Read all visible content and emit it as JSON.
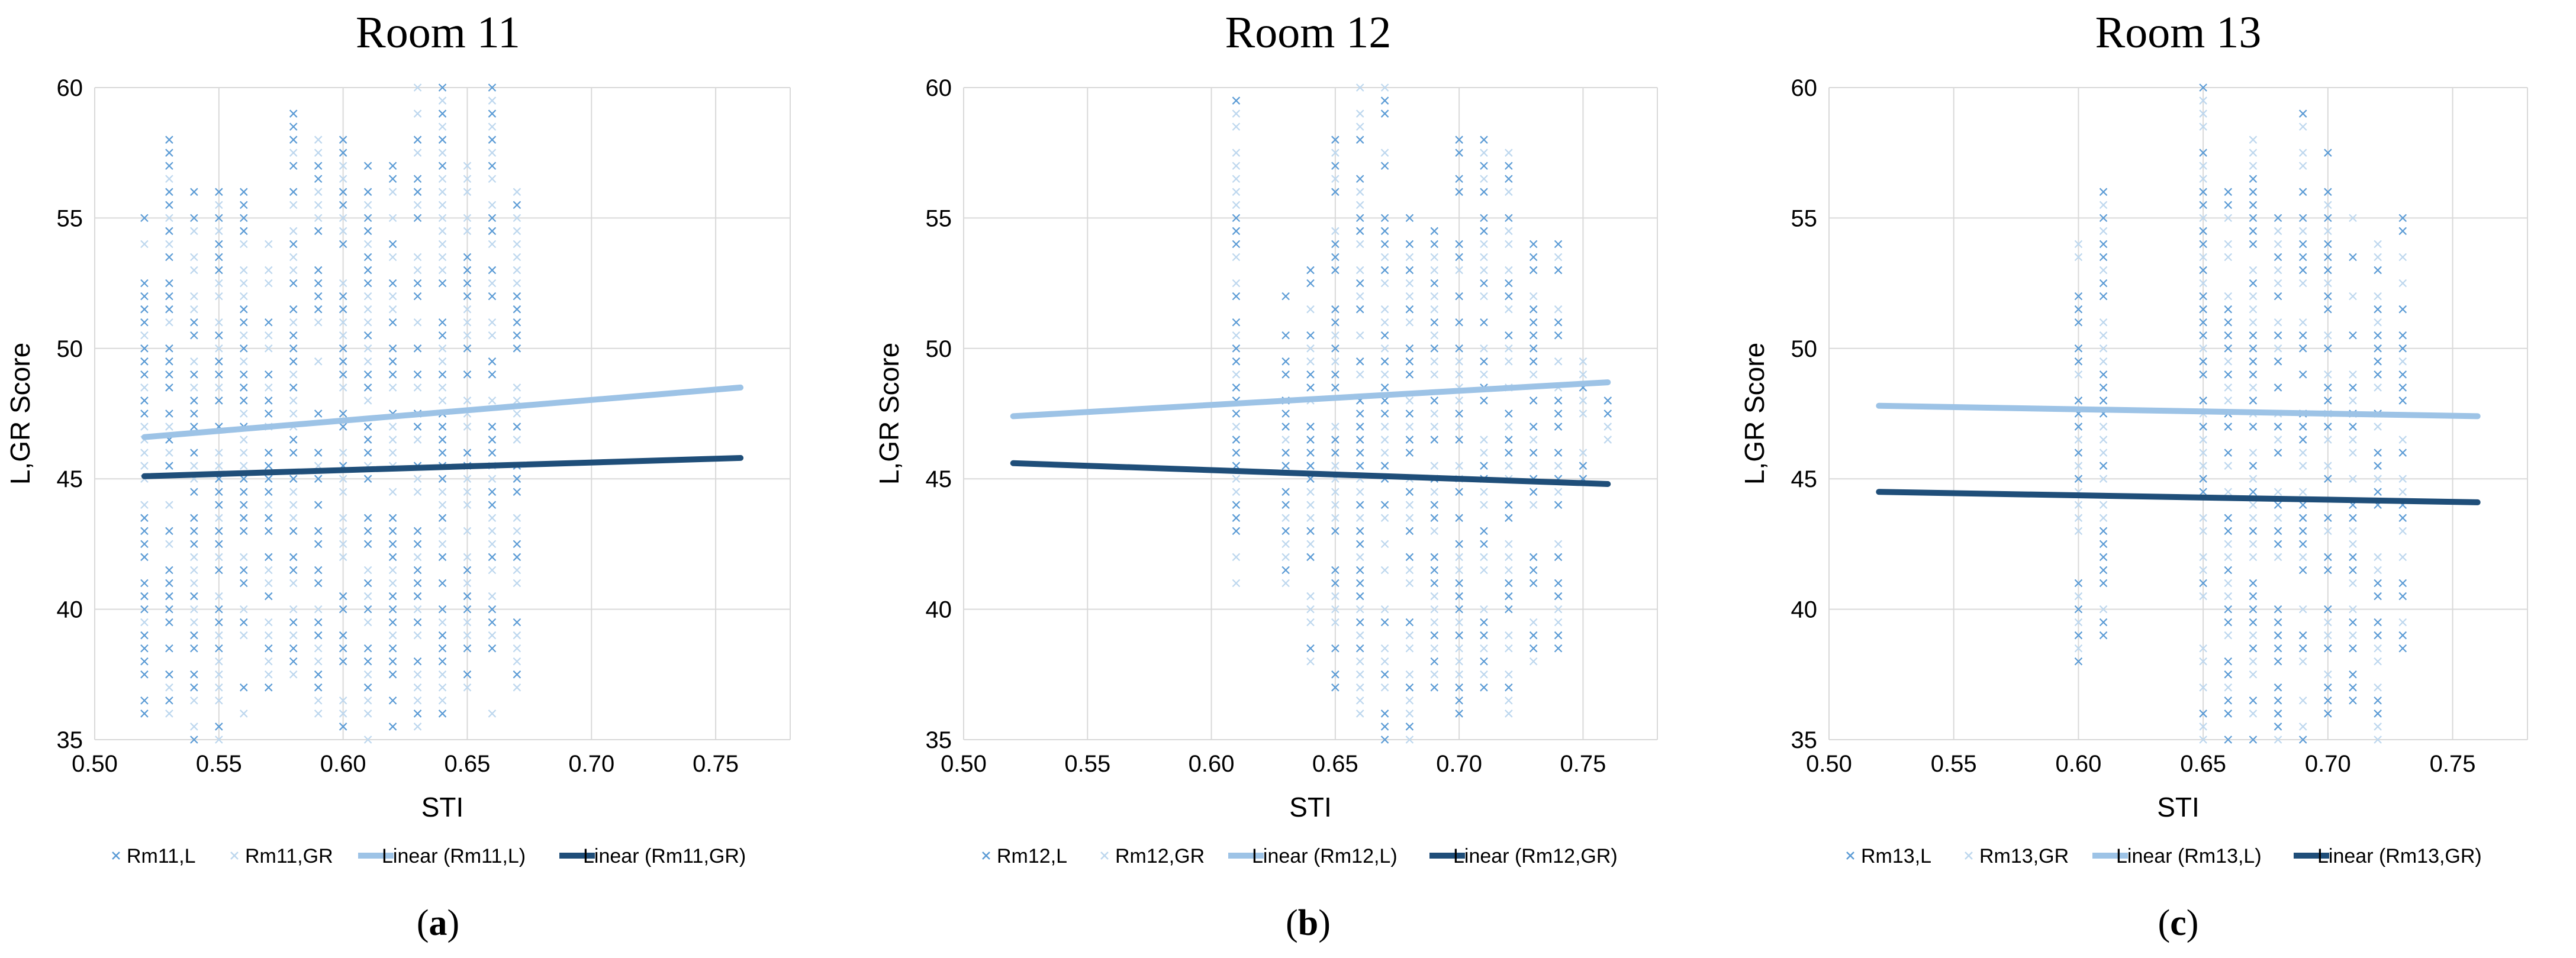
{
  "colors": {
    "L_points": "#5b9bd5",
    "GR_points": "#bdd7ee",
    "L_line": "#9dc3e6",
    "GR_line": "#1f4e79",
    "grid": "#d9d9d9"
  },
  "chart_data": [
    {
      "type": "scatter",
      "title": "Room 11",
      "caption_letter": "a",
      "xlabel": "STI",
      "ylabel": "L,GR Score",
      "xlim": [
        0.5,
        0.78
      ],
      "ylim": [
        35,
        60
      ],
      "xticks": [
        "0.50",
        "0.55",
        "0.60",
        "0.65",
        "0.70",
        "0.75"
      ],
      "yticks": [
        "35",
        "40",
        "45",
        "50",
        "55",
        "60"
      ],
      "legend": [
        "Rm11,L",
        "Rm11,GR",
        "Linear (Rm11,L)",
        "Linear (Rm11,GR)"
      ],
      "stiValues": [
        0.52,
        0.53,
        0.54,
        0.55,
        0.56,
        0.57,
        0.58,
        0.59,
        0.6,
        0.61,
        0.62,
        0.63,
        0.64,
        0.65,
        0.66,
        0.67
      ],
      "ranges": [
        [
          36,
          55
        ],
        [
          36,
          58
        ],
        [
          35,
          56
        ],
        [
          35,
          56
        ],
        [
          36,
          56
        ],
        [
          37,
          54
        ],
        [
          37,
          59
        ],
        [
          36,
          58
        ],
        [
          35,
          58
        ],
        [
          35,
          57
        ],
        [
          35,
          57
        ],
        [
          35,
          60
        ],
        [
          36,
          60
        ],
        [
          37,
          57
        ],
        [
          36,
          60
        ],
        [
          37,
          56
        ]
      ],
      "series": [
        {
          "name": "Linear (Rm11,L)",
          "x": [
            0.52,
            0.76
          ],
          "y": [
            46.6,
            48.5
          ]
        },
        {
          "name": "Linear (Rm11,GR)",
          "x": [
            0.52,
            0.76
          ],
          "y": [
            45.1,
            45.8
          ]
        }
      ]
    },
    {
      "type": "scatter",
      "title": "Room 12",
      "caption_letter": "b",
      "xlabel": "STI",
      "ylabel": "L,GR Score",
      "xlim": [
        0.5,
        0.78
      ],
      "ylim": [
        35,
        60
      ],
      "xticks": [
        "0.50",
        "0.55",
        "0.60",
        "0.65",
        "0.70",
        "0.75"
      ],
      "yticks": [
        "35",
        "40",
        "45",
        "50",
        "55",
        "60"
      ],
      "legend": [
        "Rm12,L",
        "Rm12,GR",
        "Linear (Rm12,L)",
        "Linear (Rm12,GR)"
      ],
      "stiValues": [
        0.61,
        0.63,
        0.64,
        0.65,
        0.66,
        0.67,
        0.68,
        0.69,
        0.7,
        0.71,
        0.72,
        0.73,
        0.74,
        0.75,
        0.76
      ],
      "ranges": [
        [
          41,
          60
        ],
        [
          41,
          52
        ],
        [
          38,
          53
        ],
        [
          37,
          58
        ],
        [
          36,
          60
        ],
        [
          35,
          60
        ],
        [
          35,
          55
        ],
        [
          36,
          55
        ],
        [
          36,
          58
        ],
        [
          37,
          58
        ],
        [
          36,
          58
        ],
        [
          38,
          54
        ],
        [
          38,
          54
        ],
        [
          45,
          50
        ],
        [
          46,
          48
        ]
      ],
      "series": [
        {
          "name": "Linear (Rm12,L)",
          "x": [
            0.52,
            0.76
          ],
          "y": [
            47.4,
            48.7
          ]
        },
        {
          "name": "Linear (Rm12,GR)",
          "x": [
            0.52,
            0.76
          ],
          "y": [
            45.6,
            44.8
          ]
        }
      ]
    },
    {
      "type": "scatter",
      "title": "Room 13",
      "caption_letter": "c",
      "xlabel": "STI",
      "ylabel": "L,GR Score",
      "xlim": [
        0.5,
        0.78
      ],
      "ylim": [
        35,
        60
      ],
      "xticks": [
        "0.50",
        "0.55",
        "0.60",
        "0.65",
        "0.70",
        "0.75"
      ],
      "yticks": [
        "35",
        "40",
        "45",
        "50",
        "55",
        "60"
      ],
      "legend": [
        "Rm13,L",
        "Rm13,GR",
        "Linear (Rm13,L)",
        "Linear (Rm13,GR)"
      ],
      "stiValues": [
        0.6,
        0.61,
        0.65,
        0.66,
        0.67,
        0.68,
        0.69,
        0.7,
        0.71,
        0.72,
        0.73
      ],
      "ranges": [
        [
          38,
          54
        ],
        [
          39,
          56
        ],
        [
          35,
          60
        ],
        [
          35,
          56
        ],
        [
          35,
          58
        ],
        [
          35,
          55
        ],
        [
          35,
          59
        ],
        [
          36,
          58
        ],
        [
          36,
          55
        ],
        [
          35,
          54
        ],
        [
          38,
          55
        ]
      ],
      "series": [
        {
          "name": "Linear (Rm13,L)",
          "x": [
            0.52,
            0.76
          ],
          "y": [
            47.8,
            47.4
          ]
        },
        {
          "name": "Linear (Rm13,GR)",
          "x": [
            0.52,
            0.76
          ],
          "y": [
            44.5,
            44.1
          ]
        }
      ]
    }
  ]
}
